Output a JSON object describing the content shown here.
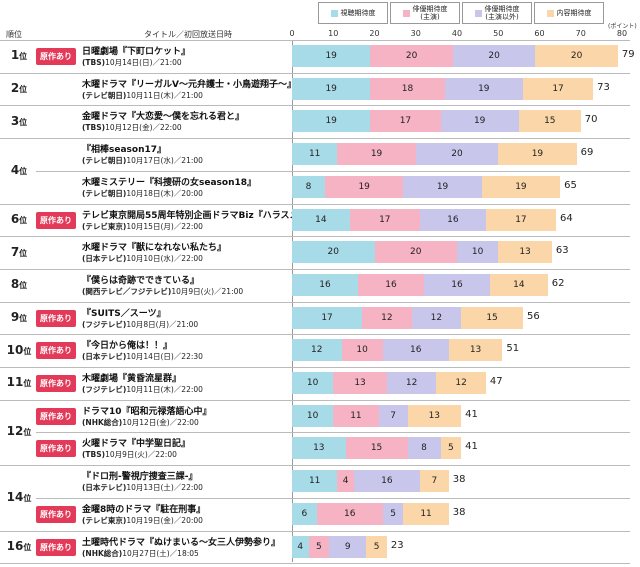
{
  "header": {
    "rank": "順位",
    "title": "タイトル／初回放送日時"
  },
  "chart_data": {
    "type": "bar",
    "orientation": "horizontal",
    "stacked": true,
    "unit": "(ポイント)",
    "xlim": [
      0,
      80
    ],
    "ticks": [
      0,
      10,
      20,
      30,
      40,
      50,
      60,
      70,
      80
    ],
    "legend": [
      {
        "name": "視聴期待度",
        "color": "#a8dbe8"
      },
      {
        "name": "俳優期待度\n(主演)",
        "color": "#f5b3c4"
      },
      {
        "name": "俳優期待度\n(主演以外)",
        "color": "#c9c6ec"
      },
      {
        "name": "内容期待度",
        "color": "#fbd6a8"
      }
    ],
    "rows": [
      {
        "rank": "1",
        "badge": "原作あり",
        "title": "日曜劇場『下町ロケット』",
        "network": "(TBS)",
        "date": "10月14日(日)／21:00",
        "values": [
          19,
          20,
          20,
          20
        ],
        "total": "79"
      },
      {
        "rank": "2",
        "badge": "",
        "title": "木曜ドラマ『リーガルV～元弁護士・小鳥遊翔子～』",
        "network": "(テレビ朝日)",
        "date": "10月11日(木)／21:00",
        "values": [
          19,
          18,
          19,
          17
        ],
        "total": "73"
      },
      {
        "rank": "3",
        "badge": "",
        "title": "金曜ドラマ『大恋愛～僕を忘れる君と』",
        "network": "(TBS)",
        "date": "10月12日(金)／22:00",
        "values": [
          19,
          17,
          19,
          15
        ],
        "total": "70"
      },
      {
        "rank": "4",
        "badge": "",
        "title": "『相棒season17』",
        "network": "(テレビ朝日)",
        "date": "10月17日(水)／21:00",
        "values": [
          11,
          19,
          20,
          19
        ],
        "total": "69"
      },
      {
        "rank": "",
        "badge": "",
        "title": "木曜ミステリー『科捜研の女season18』",
        "network": "(テレビ朝日)",
        "date": "10月18日(木)／20:00",
        "values": [
          8,
          19,
          19,
          19
        ],
        "total": "65"
      },
      {
        "rank": "6",
        "badge": "原作あり",
        "title": "テレビ東京開局55周年特別企画ドラマBiz『ハラスメントゲーム』",
        "network": "(テレビ東京)",
        "date": "10月15日(月)／22:00",
        "values": [
          14,
          17,
          16,
          17
        ],
        "total": "64"
      },
      {
        "rank": "7",
        "badge": "",
        "title": "水曜ドラマ『獣になれない私たち』",
        "network": "(日本テレビ)",
        "date": "10月10日(水)／22:00",
        "values": [
          20,
          20,
          10,
          13
        ],
        "total": "63"
      },
      {
        "rank": "8",
        "badge": "",
        "title": "『僕らは奇跡でできている』",
        "network": "(関西テレビ／フジテレビ)",
        "date": "10月9日(火)／21:00",
        "values": [
          16,
          16,
          16,
          14
        ],
        "total": "62"
      },
      {
        "rank": "9",
        "badge": "原作あり",
        "title": "『SUITS／スーツ』",
        "network": "(フジテレビ)",
        "date": "10月8日(月)／21:00",
        "values": [
          17,
          12,
          12,
          15
        ],
        "total": "56"
      },
      {
        "rank": "10",
        "badge": "原作あり",
        "title": "『今日から俺は！！』",
        "network": "(日本テレビ)",
        "date": "10月14日(日)／22:30",
        "values": [
          12,
          10,
          16,
          13
        ],
        "total": "51"
      },
      {
        "rank": "11",
        "badge": "原作あり",
        "title": "木曜劇場『黄昏流星群』",
        "network": "(フジテレビ)",
        "date": "10月11日(木)／22:00",
        "values": [
          10,
          13,
          12,
          12
        ],
        "total": "47"
      },
      {
        "rank": "12",
        "badge": "原作あり",
        "title": "ドラマ10『昭和元禄落語心中』",
        "network": "(NHK総合)",
        "date": "10月12日(金)／22:00",
        "values": [
          10,
          11,
          7,
          13
        ],
        "total": "41"
      },
      {
        "rank": "",
        "badge": "原作あり",
        "title": "火曜ドラマ『中学聖日記』",
        "network": "(TBS)",
        "date": "10月9日(火)／22:00",
        "values": [
          13,
          15,
          8,
          5
        ],
        "total": "41"
      },
      {
        "rank": "14",
        "badge": "",
        "title": "『ドロ刑-警視庁捜査三課-』",
        "network": "(日本テレビ)",
        "date": "10月13日(土)／22:00",
        "values": [
          11,
          4,
          16,
          7
        ],
        "total": "38"
      },
      {
        "rank": "",
        "badge": "原作あり",
        "title": "金曜8時のドラマ『駐在刑事』",
        "network": "(テレビ東京)",
        "date": "10月19日(金)／20:00",
        "values": [
          6,
          16,
          5,
          11
        ],
        "total": "38"
      },
      {
        "rank": "16",
        "badge": "原作あり",
        "title": "土曜時代ドラマ『ぬけまいる～女三人伊勢参り』",
        "network": "(NHK総合)",
        "date": "10月27日(土)／18:05",
        "values": [
          4,
          5,
          9,
          5
        ],
        "total": "23"
      }
    ]
  }
}
